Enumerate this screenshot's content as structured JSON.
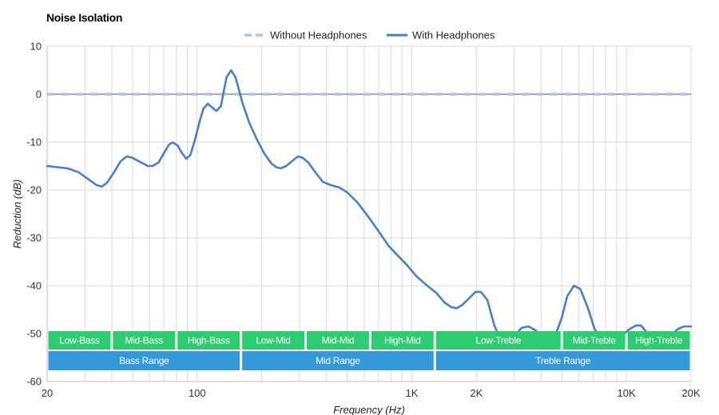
{
  "chart_data": {
    "type": "line",
    "title": "Noise Isolation",
    "xlabel": "Frequency (Hz)",
    "ylabel": "Reduction (dB)",
    "xscale": "log",
    "xlim": [
      20,
      20000
    ],
    "ylim": [
      -60,
      10
    ],
    "grid": true,
    "legend": "top-center",
    "x_tick_labels": [
      {
        "value": 20,
        "label": "20"
      },
      {
        "value": 100,
        "label": "100"
      },
      {
        "value": 1000,
        "label": "1K"
      },
      {
        "value": 2000,
        "label": "2K"
      },
      {
        "value": 10000,
        "label": "10K"
      },
      {
        "value": 20000,
        "label": "20K"
      }
    ],
    "y_ticks": [
      10,
      0,
      -10,
      -20,
      -30,
      -40,
      -50,
      -60
    ],
    "series": [
      {
        "name": "Without Headphones",
        "color": "#a9c4ee",
        "style": "dashed",
        "points": [
          [
            20,
            0
          ],
          [
            20000,
            0
          ]
        ]
      },
      {
        "name": "With Headphones",
        "color": "#4a7fc1",
        "style": "solid",
        "points": [
          [
            20,
            -15
          ],
          [
            25,
            -15.5
          ],
          [
            28,
            -16.3
          ],
          [
            31,
            -17.7
          ],
          [
            34,
            -19
          ],
          [
            36,
            -19.3
          ],
          [
            38,
            -18.5
          ],
          [
            41,
            -16.3
          ],
          [
            44,
            -14
          ],
          [
            47,
            -13
          ],
          [
            50,
            -13.3
          ],
          [
            55,
            -14.3
          ],
          [
            59,
            -15
          ],
          [
            62,
            -15
          ],
          [
            66,
            -14.3
          ],
          [
            70,
            -12.3
          ],
          [
            74,
            -10.5
          ],
          [
            77,
            -10.1
          ],
          [
            81,
            -10.7
          ],
          [
            85,
            -12.3
          ],
          [
            89,
            -13.5
          ],
          [
            93,
            -12.7
          ],
          [
            98,
            -9.3
          ],
          [
            103,
            -5.5
          ],
          [
            107,
            -3
          ],
          [
            112,
            -2
          ],
          [
            117,
            -2.7
          ],
          [
            123,
            -3.5
          ],
          [
            129,
            -2.5
          ],
          [
            137,
            3.5
          ],
          [
            144,
            5
          ],
          [
            151,
            3.5
          ],
          [
            163,
            -2
          ],
          [
            175,
            -6
          ],
          [
            190,
            -9.5
          ],
          [
            205,
            -12.3
          ],
          [
            222,
            -14.5
          ],
          [
            235,
            -15.3
          ],
          [
            245,
            -15.5
          ],
          [
            260,
            -15
          ],
          [
            280,
            -13.8
          ],
          [
            295,
            -13
          ],
          [
            310,
            -13.3
          ],
          [
            330,
            -14.3
          ],
          [
            355,
            -16.3
          ],
          [
            385,
            -18.3
          ],
          [
            420,
            -19
          ],
          [
            460,
            -19.5
          ],
          [
            500,
            -20.5
          ],
          [
            560,
            -22.7
          ],
          [
            630,
            -25.7
          ],
          [
            710,
            -29
          ],
          [
            780,
            -31.7
          ],
          [
            860,
            -33.7
          ],
          [
            950,
            -35.7
          ],
          [
            1050,
            -38
          ],
          [
            1180,
            -40
          ],
          [
            1300,
            -41.5
          ],
          [
            1420,
            -43.5
          ],
          [
            1530,
            -44.5
          ],
          [
            1620,
            -44.7
          ],
          [
            1720,
            -44
          ],
          [
            1860,
            -42.5
          ],
          [
            1980,
            -41.3
          ],
          [
            2100,
            -41.3
          ],
          [
            2250,
            -43
          ],
          [
            2420,
            -48.2
          ],
          [
            2600,
            -51.5
          ],
          [
            2800,
            -51.8
          ],
          [
            3000,
            -50.5
          ],
          [
            3250,
            -48.8
          ],
          [
            3500,
            -48.5
          ],
          [
            3800,
            -49.4
          ],
          [
            4100,
            -51.2
          ],
          [
            4400,
            -51.5
          ],
          [
            4700,
            -50
          ],
          [
            5000,
            -46.7
          ],
          [
            5300,
            -42.2
          ],
          [
            5700,
            -40
          ],
          [
            6100,
            -40.7
          ],
          [
            6600,
            -44.5
          ],
          [
            7100,
            -49
          ],
          [
            7600,
            -51.2
          ],
          [
            8200,
            -51.7
          ],
          [
            8900,
            -51.3
          ],
          [
            9600,
            -50.2
          ],
          [
            10400,
            -49
          ],
          [
            11100,
            -48.3
          ],
          [
            11700,
            -48.3
          ],
          [
            12300,
            -49.5
          ],
          [
            13200,
            -51.7
          ],
          [
            14200,
            -52
          ],
          [
            15200,
            -51.5
          ],
          [
            16300,
            -50.2
          ],
          [
            17400,
            -49
          ],
          [
            18600,
            -48.5
          ],
          [
            20000,
            -48.5
          ]
        ]
      }
    ],
    "annotations": {
      "ranges_row1": [
        {
          "label": "Low-Bass",
          "start": 20,
          "end": 40
        },
        {
          "label": "Mid-Bass",
          "start": 40,
          "end": 80
        },
        {
          "label": "High-Bass",
          "start": 80,
          "end": 160
        },
        {
          "label": "Low-Mid",
          "start": 160,
          "end": 320
        },
        {
          "label": "Mid-Mid",
          "start": 320,
          "end": 640
        },
        {
          "label": "High-Mid",
          "start": 640,
          "end": 1280
        },
        {
          "label": "Low-Treble",
          "start": 1280,
          "end": 5000
        },
        {
          "label": "Mid-Treble",
          "start": 5000,
          "end": 10000
        },
        {
          "label": "High-Treble",
          "start": 10000,
          "end": 20000
        }
      ],
      "ranges_row2": [
        {
          "label": "Bass Range",
          "start": 20,
          "end": 160
        },
        {
          "label": "Mid Range",
          "start": 160,
          "end": 1280
        },
        {
          "label": "Treble Range",
          "start": 1280,
          "end": 20000
        }
      ],
      "row1_color": "#2ecc71",
      "row2_color": "#3498db"
    }
  }
}
